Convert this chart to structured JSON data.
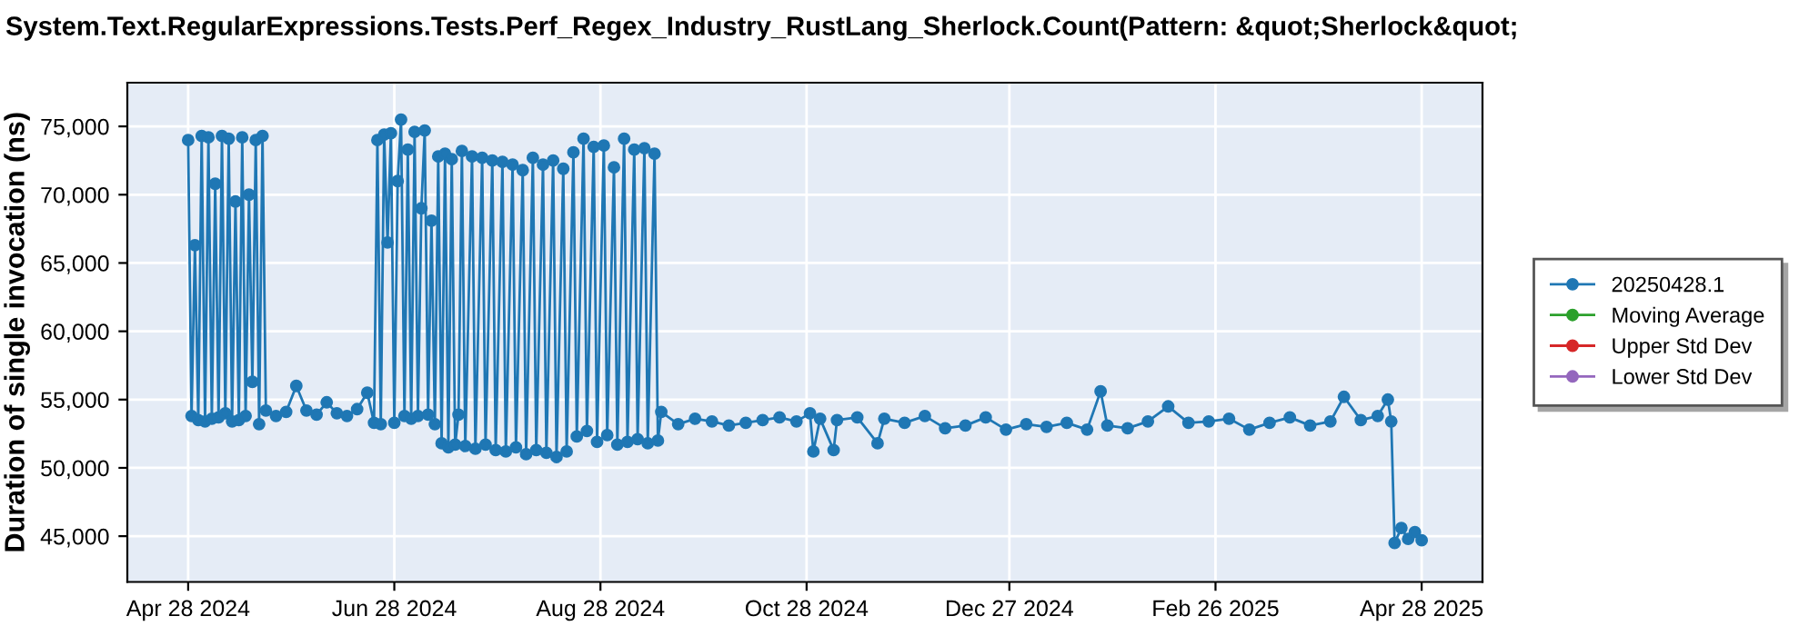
{
  "chart_data": {
    "type": "line",
    "title": "System.Text.RegularExpressions.Tests.Perf_Regex_Industry_RustLang_Sherlock.Count(Pattern: &quot;Sherlock&quot;",
    "ylabel": "Duration of single invocation (ns)",
    "xlim": [
      "2024-04-10",
      "2025-05-16"
    ],
    "ylim": [
      41650,
      78200
    ],
    "xticks": [
      {
        "value": "2024-04-28",
        "label": "Apr 28 2024"
      },
      {
        "value": "2024-06-28",
        "label": "Jun 28 2024"
      },
      {
        "value": "2024-08-28",
        "label": "Aug 28 2024"
      },
      {
        "value": "2024-10-28",
        "label": "Oct 28 2024"
      },
      {
        "value": "2024-12-27",
        "label": "Dec 27 2024"
      },
      {
        "value": "2025-02-26",
        "label": "Feb 26 2025"
      },
      {
        "value": "2025-04-28",
        "label": "Apr 28 2025"
      }
    ],
    "yticks": [
      {
        "value": 45000,
        "label": "45,000"
      },
      {
        "value": 50000,
        "label": "50,000"
      },
      {
        "value": 55000,
        "label": "55,000"
      },
      {
        "value": 60000,
        "label": "60,000"
      },
      {
        "value": 65000,
        "label": "65,000"
      },
      {
        "value": 70000,
        "label": "70,000"
      },
      {
        "value": 75000,
        "label": "75,000"
      }
    ],
    "grid": true,
    "legend": "right",
    "marker": "circle",
    "line_style": "solid",
    "series": [
      {
        "name": "20250428.1",
        "color": "#1f77b4",
        "x": [
          "2024-04-28",
          "2024-04-29",
          "2024-04-30",
          "2024-05-01",
          "2024-05-02",
          "2024-05-03",
          "2024-05-04",
          "2024-05-05",
          "2024-05-06",
          "2024-05-07",
          "2024-05-08",
          "2024-05-09",
          "2024-05-10",
          "2024-05-11",
          "2024-05-12",
          "2024-05-13",
          "2024-05-14",
          "2024-05-15",
          "2024-05-16",
          "2024-05-17",
          "2024-05-18",
          "2024-05-19",
          "2024-05-20",
          "2024-05-21",
          "2024-05-24",
          "2024-05-27",
          "2024-05-30",
          "2024-06-02",
          "2024-06-05",
          "2024-06-08",
          "2024-06-11",
          "2024-06-14",
          "2024-06-17",
          "2024-06-20",
          "2024-06-22",
          "2024-06-23",
          "2024-06-24",
          "2024-06-25",
          "2024-06-26",
          "2024-06-27",
          "2024-06-28",
          "2024-06-29",
          "2024-06-30",
          "2024-07-01",
          "2024-07-02",
          "2024-07-03",
          "2024-07-04",
          "2024-07-05",
          "2024-07-06",
          "2024-07-07",
          "2024-07-08",
          "2024-07-09",
          "2024-07-10",
          "2024-07-11",
          "2024-07-12",
          "2024-07-13",
          "2024-07-14",
          "2024-07-15",
          "2024-07-16",
          "2024-07-17",
          "2024-07-18",
          "2024-07-19",
          "2024-07-21",
          "2024-07-22",
          "2024-07-24",
          "2024-07-25",
          "2024-07-27",
          "2024-07-28",
          "2024-07-30",
          "2024-07-31",
          "2024-08-02",
          "2024-08-03",
          "2024-08-05",
          "2024-08-06",
          "2024-08-08",
          "2024-08-09",
          "2024-08-11",
          "2024-08-12",
          "2024-08-14",
          "2024-08-15",
          "2024-08-17",
          "2024-08-18",
          "2024-08-20",
          "2024-08-21",
          "2024-08-23",
          "2024-08-24",
          "2024-08-26",
          "2024-08-27",
          "2024-08-29",
          "2024-08-30",
          "2024-09-01",
          "2024-09-02",
          "2024-09-04",
          "2024-09-05",
          "2024-09-07",
          "2024-09-08",
          "2024-09-10",
          "2024-09-11",
          "2024-09-13",
          "2024-09-14",
          "2024-09-15",
          "2024-09-20",
          "2024-09-25",
          "2024-09-30",
          "2024-10-05",
          "2024-10-10",
          "2024-10-15",
          "2024-10-20",
          "2024-10-25",
          "2024-10-29",
          "2024-10-30",
          "2024-11-01",
          "2024-11-05",
          "2024-11-06",
          "2024-11-12",
          "2024-11-18",
          "2024-11-20",
          "2024-11-26",
          "2024-12-02",
          "2024-12-08",
          "2024-12-14",
          "2024-12-20",
          "2024-12-26",
          "2025-01-01",
          "2025-01-07",
          "2025-01-13",
          "2025-01-19",
          "2025-01-23",
          "2025-01-25",
          "2025-01-31",
          "2025-02-06",
          "2025-02-12",
          "2025-02-18",
          "2025-02-24",
          "2025-03-02",
          "2025-03-08",
          "2025-03-14",
          "2025-03-20",
          "2025-03-26",
          "2025-04-01",
          "2025-04-05",
          "2025-04-10",
          "2025-04-15",
          "2025-04-18",
          "2025-04-19",
          "2025-04-20",
          "2025-04-22",
          "2025-04-24",
          "2025-04-26",
          "2025-04-28"
        ],
        "values": [
          74000,
          53800,
          66300,
          53500,
          74300,
          53400,
          74200,
          53600,
          70800,
          53700,
          74300,
          54000,
          74100,
          53400,
          69500,
          53500,
          74200,
          53800,
          70000,
          56300,
          74000,
          53200,
          74300,
          54200,
          53800,
          54100,
          56000,
          54200,
          53900,
          54800,
          54000,
          53800,
          54300,
          55500,
          53300,
          74000,
          53200,
          74400,
          66500,
          74500,
          53300,
          71000,
          75500,
          53800,
          73300,
          53600,
          74600,
          53800,
          69000,
          74700,
          53900,
          68100,
          53200,
          72800,
          51800,
          73000,
          51500,
          72600,
          51700,
          53900,
          73200,
          51600,
          72800,
          51400,
          72700,
          51700,
          72500,
          51300,
          72400,
          51200,
          72200,
          51500,
          71800,
          51000,
          72700,
          51300,
          72200,
          51100,
          72500,
          50800,
          71900,
          51200,
          73100,
          52300,
          74100,
          52700,
          73500,
          51900,
          73600,
          52400,
          72000,
          51700,
          74100,
          51900,
          73300,
          52100,
          73400,
          51800,
          73000,
          52000,
          54100,
          53200,
          53600,
          53400,
          53100,
          53300,
          53500,
          53700,
          53400,
          54000,
          51200,
          53600,
          51300,
          53500,
          53700,
          51800,
          53600,
          53300,
          53800,
          52900,
          53100,
          53700,
          52800,
          53200,
          53000,
          53300,
          52800,
          55600,
          53100,
          52900,
          53400,
          54500,
          53300,
          53400,
          53600,
          52800,
          53300,
          53700,
          53100,
          53400,
          55200,
          53500,
          53800,
          55000,
          53400,
          44500,
          45600,
          44800,
          45300,
          44700
        ]
      },
      {
        "name": "Moving Average",
        "color": "#2ca02c"
      },
      {
        "name": "Upper Std Dev",
        "color": "#d62728"
      },
      {
        "name": "Lower Std Dev",
        "color": "#9467bd"
      }
    ]
  }
}
